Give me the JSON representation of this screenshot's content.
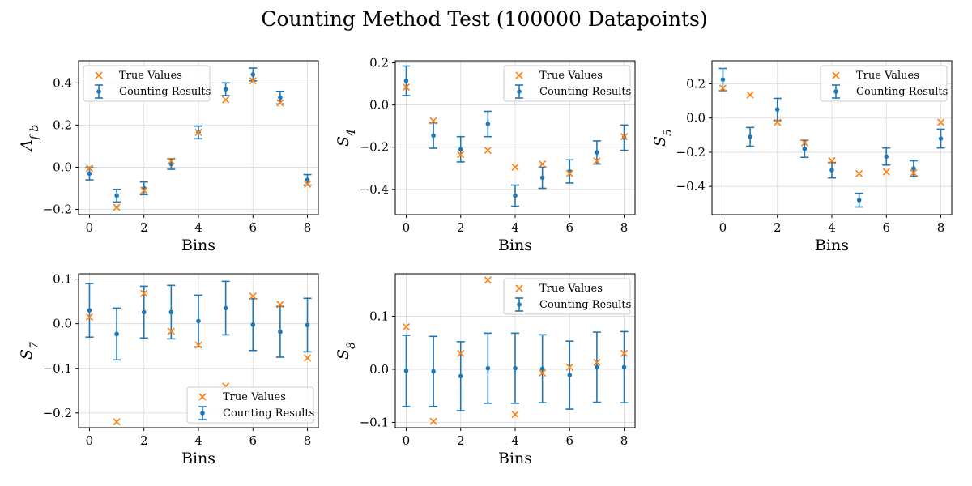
{
  "figure": {
    "title": "Counting Method Test (100000 Datapoints)",
    "colors": {
      "true_values": "#ff7f0e",
      "counting_results": "#1f77b4",
      "grid": "#d9d9d9"
    }
  },
  "chart_data": [
    {
      "type": "scatter",
      "name": "A_fb",
      "xlabel": "Bins",
      "ylabel": "A_f b",
      "xlim": [
        -0.4,
        8.4
      ],
      "ylim": [
        -0.225,
        0.505
      ],
      "xticks": [
        0,
        2,
        4,
        6,
        8
      ],
      "yticks": [
        -0.2,
        0.0,
        0.2,
        0.4
      ],
      "ytick_labels": [
        "−0.2",
        "0.0",
        "0.2",
        "0.4"
      ],
      "grid": true,
      "legend": {
        "location": "upper-left",
        "true_label": "True Values",
        "counting_label": "Counting Results"
      },
      "x": [
        0,
        1,
        2,
        3,
        4,
        5,
        6,
        7,
        8
      ],
      "true_values": [
        -0.005,
        -0.19,
        -0.11,
        0.03,
        0.165,
        0.32,
        0.41,
        0.305,
        -0.08
      ],
      "counting_values": [
        -0.03,
        -0.135,
        -0.1,
        0.015,
        0.165,
        0.37,
        0.44,
        0.33,
        -0.06
      ],
      "errors": [
        0.03,
        0.03,
        0.03,
        0.025,
        0.03,
        0.03,
        0.03,
        0.03,
        0.025
      ]
    },
    {
      "type": "scatter",
      "name": "S_4",
      "xlabel": "Bins",
      "ylabel": "S_4",
      "xlim": [
        -0.4,
        8.4
      ],
      "ylim": [
        -0.52,
        0.21
      ],
      "xticks": [
        0,
        2,
        4,
        6,
        8
      ],
      "yticks": [
        -0.4,
        -0.2,
        0.0,
        0.2
      ],
      "ytick_labels": [
        "−0.4",
        "−0.2",
        "0.0",
        "0.2"
      ],
      "grid": true,
      "legend": {
        "location": "upper-right",
        "true_label": "True Values",
        "counting_label": "Counting Results"
      },
      "x": [
        0,
        1,
        2,
        3,
        4,
        5,
        6,
        7,
        8
      ],
      "true_values": [
        0.085,
        -0.075,
        -0.235,
        -0.215,
        -0.295,
        -0.28,
        -0.325,
        -0.265,
        -0.15
      ],
      "counting_values": [
        0.115,
        -0.145,
        -0.21,
        -0.09,
        -0.43,
        -0.345,
        -0.315,
        -0.225,
        -0.155
      ],
      "errors": [
        0.07,
        0.06,
        0.06,
        0.06,
        0.05,
        0.05,
        0.055,
        0.055,
        0.06
      ]
    },
    {
      "type": "scatter",
      "name": "S_5",
      "xlabel": "Bins",
      "ylabel": "S_5",
      "xlim": [
        -0.4,
        8.4
      ],
      "ylim": [
        -0.565,
        0.335
      ],
      "xticks": [
        0,
        2,
        4,
        6,
        8
      ],
      "yticks": [
        -0.4,
        -0.2,
        0.0,
        0.2
      ],
      "ytick_labels": [
        "−0.4",
        "−0.2",
        "0.0",
        "0.2"
      ],
      "grid": true,
      "legend": {
        "location": "upper-right",
        "true_label": "True Values",
        "counting_label": "Counting Results"
      },
      "x": [
        0,
        1,
        2,
        3,
        4,
        5,
        6,
        7,
        8
      ],
      "true_values": [
        0.175,
        0.135,
        -0.025,
        -0.145,
        -0.25,
        -0.325,
        -0.315,
        -0.32,
        -0.025
      ],
      "counting_values": [
        0.225,
        -0.11,
        0.05,
        -0.18,
        -0.305,
        -0.48,
        -0.225,
        -0.295,
        -0.12
      ],
      "errors": [
        0.065,
        0.055,
        0.065,
        0.05,
        0.045,
        0.04,
        0.05,
        0.045,
        0.055
      ]
    },
    {
      "type": "scatter",
      "name": "S_7",
      "xlabel": "Bins",
      "ylabel": "S_7",
      "xlim": [
        -0.4,
        8.4
      ],
      "ylim": [
        -0.233,
        0.112
      ],
      "xticks": [
        0,
        2,
        4,
        6,
        8
      ],
      "yticks": [
        -0.2,
        -0.1,
        0.0,
        0.1
      ],
      "ytick_labels": [
        "−0.2",
        "−0.1",
        "0.0",
        "0.1"
      ],
      "grid": true,
      "legend": {
        "location": "lower-right",
        "true_label": "True Values",
        "counting_label": "Counting Results"
      },
      "x": [
        0,
        1,
        2,
        3,
        4,
        5,
        6,
        7,
        8
      ],
      "true_values": [
        0.015,
        -0.22,
        0.068,
        -0.017,
        -0.048,
        -0.14,
        0.062,
        0.043,
        -0.077
      ],
      "counting_values": [
        0.03,
        -0.023,
        0.026,
        0.026,
        0.006,
        0.035,
        -0.002,
        -0.018,
        -0.003
      ],
      "errors": [
        0.06,
        0.058,
        0.058,
        0.06,
        0.058,
        0.06,
        0.058,
        0.057,
        0.06
      ]
    },
    {
      "type": "scatter",
      "name": "S_8",
      "xlabel": "Bins",
      "ylabel": "S_8",
      "xlim": [
        -0.4,
        8.4
      ],
      "ylim": [
        -0.11,
        0.18
      ],
      "xticks": [
        0,
        2,
        4,
        6,
        8
      ],
      "yticks": [
        -0.1,
        0.0,
        0.1
      ],
      "ytick_labels": [
        "−0.1",
        "0.0",
        "0.1"
      ],
      "grid": true,
      "legend": {
        "location": "upper-right",
        "true_label": "True Values",
        "counting_label": "Counting Results"
      },
      "x": [
        0,
        1,
        2,
        3,
        4,
        5,
        6,
        7,
        8
      ],
      "true_values": [
        0.08,
        -0.098,
        0.03,
        0.168,
        -0.085,
        -0.007,
        0.004,
        0.013,
        0.03
      ],
      "counting_values": [
        -0.003,
        -0.004,
        -0.013,
        0.002,
        0.002,
        0.001,
        -0.011,
        0.004,
        0.004
      ],
      "errors": [
        0.067,
        0.066,
        0.065,
        0.066,
        0.066,
        0.064,
        0.064,
        0.066,
        0.067
      ]
    }
  ]
}
